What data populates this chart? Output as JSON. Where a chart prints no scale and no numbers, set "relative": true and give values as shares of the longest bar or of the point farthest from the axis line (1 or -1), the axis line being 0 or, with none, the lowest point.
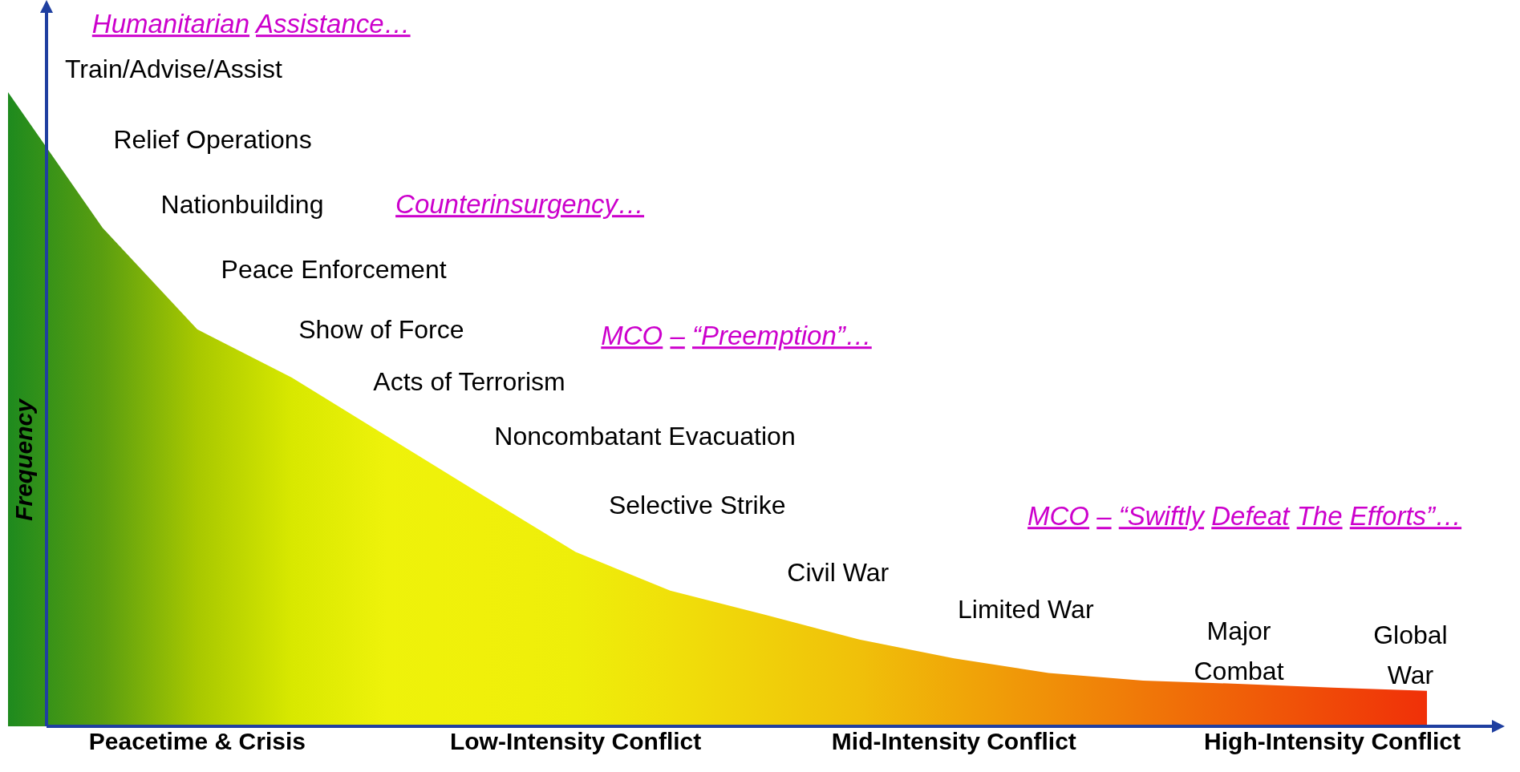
{
  "chart_data": {
    "type": "area",
    "relative": true,
    "ylabel": "Frequency",
    "categories": [
      null,
      null,
      "Peacetime & Crisis",
      null,
      null,
      null,
      "Low-Intensity Conflict",
      null,
      null,
      null,
      "Mid-Intensity Conflict",
      null,
      null,
      null,
      "High-Intensity Conflict",
      null
    ],
    "values": [
      1,
      0.786,
      0.626,
      0.55,
      0.458,
      0.366,
      0.275,
      0.214,
      0.176,
      0.137,
      0.107,
      0.084,
      0.072,
      0.067,
      0.061,
      0.056
    ],
    "colors": [
      "#1e8a1e",
      "#5a9e10",
      "#a8c800",
      "#d8e800",
      "#eef20a",
      "#f0f00a",
      "#eeee0a",
      "#f0e00a",
      "#f0d00a",
      "#f0c00a",
      "#f0a808",
      "#f09008",
      "#f07808",
      "#f06008",
      "#f04808",
      "#f03008"
    ],
    "annotations": [
      "Humanitarian Assistance…",
      "Train/Advise/Assist",
      "Relief Operations",
      "Nationbuilding",
      "Counterinsurgency…",
      "Peace Enforcement",
      "Show of Force",
      "MCO – “Preemption”…",
      "Acts of Terrorism",
      "Noncombatant Evacuation",
      "Selective Strike",
      "MCO – “Swiftly Defeat The Efforts”…",
      "Civil War",
      "Limited War",
      "Major Combat",
      "Global War"
    ]
  }
}
